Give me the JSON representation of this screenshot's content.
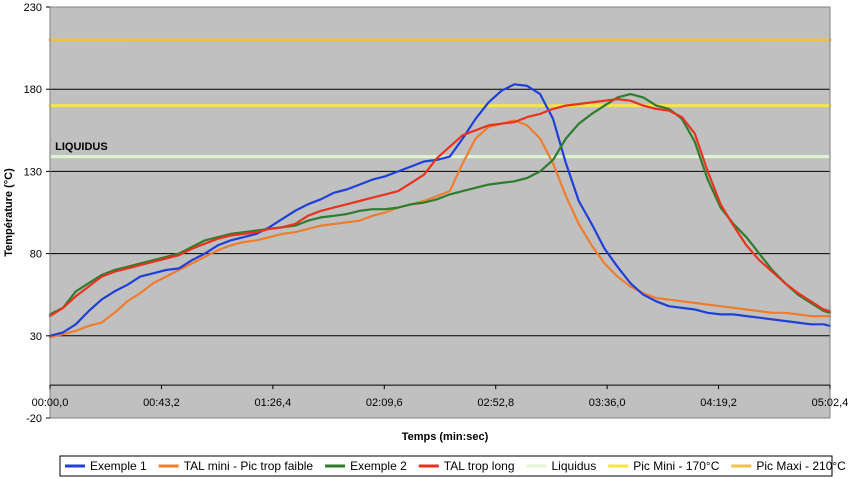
{
  "chart_data": {
    "type": "line",
    "xlabel": "Temps (min:sec)",
    "ylabel": "Température (°C)",
    "ylim": [
      -20,
      230
    ],
    "xlim": [
      0,
      302.4
    ],
    "y_ticks": [
      -20,
      30,
      80,
      130,
      180,
      230
    ],
    "x_ticks": [
      {
        "value": 0,
        "label": "00:00,0"
      },
      {
        "value": 43.2,
        "label": "00:43,2"
      },
      {
        "value": 86.4,
        "label": "01:26,4"
      },
      {
        "value": 129.6,
        "label": "02:09,6"
      },
      {
        "value": 172.8,
        "label": "02:52,8"
      },
      {
        "value": 216.0,
        "label": "03:36,0"
      },
      {
        "value": 259.2,
        "label": "04:19,2"
      },
      {
        "value": 302.4,
        "label": "05:02,4"
      }
    ],
    "grid": true,
    "legend_position": "bottom",
    "background_color": "#c0c0c0",
    "annotations": [
      {
        "text": "LIQUIDUS",
        "x": 2,
        "y": 143
      }
    ],
    "series": [
      {
        "name": "Exemple 1",
        "color": "#1f3fd9",
        "x": [
          0,
          5,
          10,
          15,
          20,
          25,
          30,
          35,
          40,
          45,
          50,
          55,
          60,
          65,
          70,
          75,
          80,
          85,
          90,
          95,
          100,
          105,
          110,
          115,
          120,
          125,
          130,
          135,
          140,
          145,
          150,
          155,
          160,
          165,
          170,
          175,
          180,
          185,
          190,
          195,
          200,
          205,
          210,
          215,
          220,
          225,
          230,
          235,
          240,
          245,
          250,
          255,
          260,
          265,
          270,
          275,
          280,
          285,
          290,
          295,
          300,
          302.4
        ],
        "y": [
          30,
          32,
          37,
          45,
          52,
          57,
          61,
          66,
          68,
          70,
          71,
          76,
          80,
          85,
          88,
          90,
          92,
          96,
          101,
          106,
          110,
          113,
          117,
          119,
          122,
          125,
          127,
          130,
          133,
          136,
          137,
          139,
          150,
          162,
          172,
          179,
          183,
          182,
          177,
          162,
          135,
          112,
          98,
          83,
          72,
          62,
          55,
          51,
          48,
          47,
          46,
          44,
          43,
          43,
          42,
          41,
          40,
          39,
          38,
          37,
          37,
          36
        ]
      },
      {
        "name": "TAL mini - Pic trop faible",
        "color": "#f07d2e",
        "x": [
          0,
          5,
          10,
          15,
          20,
          25,
          30,
          35,
          40,
          45,
          50,
          55,
          60,
          65,
          70,
          75,
          80,
          85,
          90,
          95,
          100,
          105,
          110,
          115,
          120,
          125,
          130,
          135,
          140,
          145,
          150,
          155,
          160,
          165,
          170,
          175,
          180,
          185,
          190,
          195,
          200,
          205,
          210,
          215,
          220,
          225,
          230,
          235,
          240,
          245,
          250,
          255,
          260,
          265,
          270,
          275,
          280,
          285,
          290,
          295,
          300,
          302.4
        ],
        "y": [
          29,
          31,
          33,
          36,
          38,
          44,
          51,
          56,
          62,
          66,
          70,
          74,
          78,
          82,
          85,
          87,
          88,
          90,
          92,
          93,
          95,
          97,
          98,
          99,
          100,
          103,
          105,
          108,
          110,
          112,
          115,
          118,
          135,
          150,
          157,
          159,
          161,
          158,
          150,
          135,
          115,
          98,
          85,
          74,
          66,
          60,
          56,
          53,
          52,
          51,
          50,
          49,
          48,
          47,
          46,
          45,
          44,
          44,
          43,
          42,
          42,
          42
        ]
      },
      {
        "name": "Exemple 2",
        "color": "#2e7d2e",
        "x": [
          0,
          5,
          10,
          15,
          20,
          25,
          30,
          35,
          40,
          45,
          50,
          55,
          60,
          65,
          70,
          75,
          80,
          85,
          90,
          95,
          100,
          105,
          110,
          115,
          120,
          125,
          130,
          135,
          140,
          145,
          150,
          155,
          160,
          165,
          170,
          175,
          180,
          185,
          190,
          195,
          200,
          205,
          210,
          215,
          220,
          225,
          230,
          235,
          240,
          245,
          250,
          255,
          260,
          265,
          270,
          275,
          280,
          285,
          290,
          295,
          300,
          302.4
        ],
        "y": [
          43,
          47,
          57,
          62,
          67,
          70,
          72,
          74,
          76,
          78,
          80,
          84,
          88,
          90,
          92,
          93,
          94,
          95,
          96,
          97,
          100,
          102,
          103,
          104,
          106,
          107,
          107,
          108,
          110,
          111,
          113,
          116,
          118,
          120,
          122,
          123,
          124,
          126,
          130,
          137,
          150,
          159,
          165,
          170,
          175,
          177,
          175,
          170,
          168,
          162,
          148,
          125,
          108,
          98,
          90,
          80,
          70,
          62,
          55,
          50,
          45,
          44
        ]
      },
      {
        "name": "TAL trop long",
        "color": "#e8331f",
        "x": [
          0,
          5,
          10,
          15,
          20,
          25,
          30,
          35,
          40,
          45,
          50,
          55,
          60,
          65,
          70,
          75,
          80,
          85,
          90,
          95,
          100,
          105,
          110,
          115,
          120,
          125,
          130,
          135,
          140,
          145,
          150,
          155,
          160,
          165,
          170,
          175,
          180,
          185,
          190,
          195,
          200,
          205,
          210,
          215,
          220,
          225,
          230,
          235,
          240,
          245,
          250,
          255,
          260,
          265,
          270,
          275,
          280,
          285,
          290,
          295,
          300,
          302.4
        ],
        "y": [
          42,
          47,
          54,
          60,
          66,
          69,
          71,
          73,
          75,
          77,
          79,
          83,
          86,
          89,
          91,
          92,
          93,
          95,
          96,
          98,
          103,
          106,
          108,
          110,
          112,
          114,
          116,
          118,
          123,
          128,
          138,
          145,
          152,
          155,
          158,
          159,
          160,
          163,
          165,
          168,
          170,
          171,
          172,
          173,
          174,
          173,
          170,
          168,
          167,
          163,
          153,
          130,
          110,
          97,
          85,
          76,
          69,
          62,
          56,
          51,
          46,
          45
        ]
      },
      {
        "name": "Liquidus",
        "color": "#e2f5d2",
        "x": [
          0,
          302.4
        ],
        "y": [
          139,
          139
        ]
      },
      {
        "name": "Pic Mini - 170°C",
        "color": "#f5e642",
        "x": [
          0,
          302.4
        ],
        "y": [
          170,
          170
        ]
      },
      {
        "name": "Pic Maxi - 210°C",
        "color": "#f2c04a",
        "x": [
          0,
          302.4
        ],
        "y": [
          210,
          210
        ]
      }
    ]
  }
}
